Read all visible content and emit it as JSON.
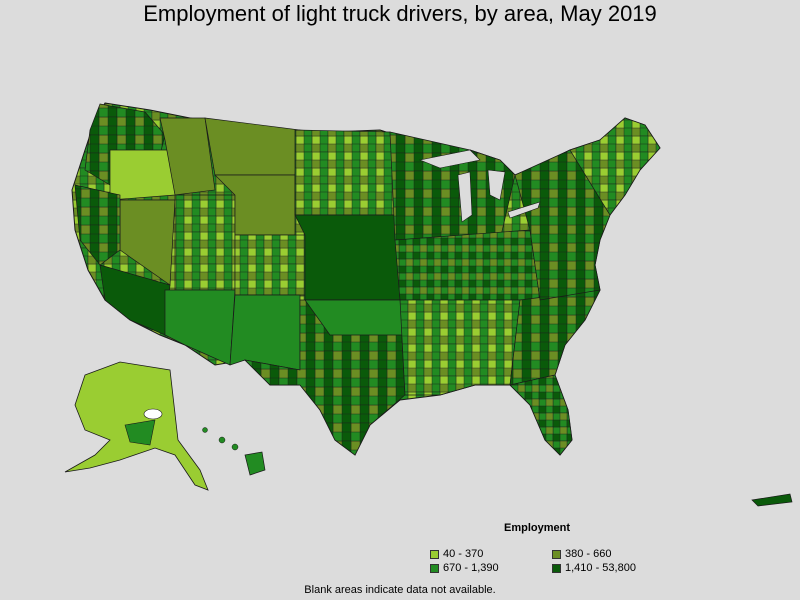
{
  "title": "Employment of light truck drivers, by area, May 2019",
  "legend": {
    "title": "Employment",
    "items": [
      {
        "label": "40 - 370",
        "color": "#9acd32"
      },
      {
        "label": "380 - 660",
        "color": "#6b8e23"
      },
      {
        "label": "670 - 1,390",
        "color": "#228b22"
      },
      {
        "label": "1,410 - 53,800",
        "color": "#0a5a0a"
      }
    ]
  },
  "note": "Blank areas indicate data not available.",
  "colors": {
    "background": "#dcdcdc",
    "border": "#1a1a1a"
  }
}
